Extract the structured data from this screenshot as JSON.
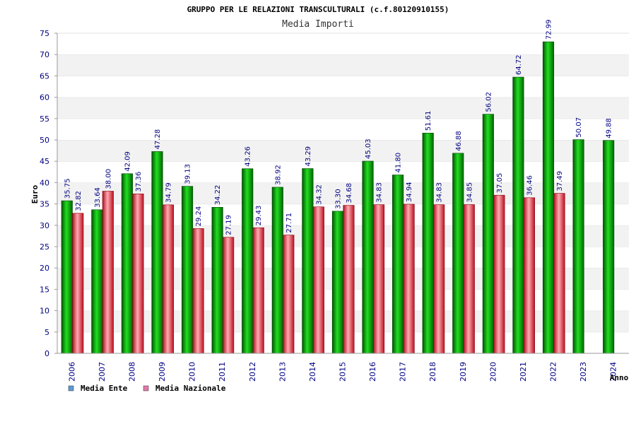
{
  "chart_data": {
    "type": "bar",
    "title": "GRUPPO PER LE RELAZIONI TRANSCULTURALI (c.f.80120910155)",
    "subtitle": "Media Importi",
    "ylabel": "Euro",
    "xlabel": "Anno",
    "ylim": [
      0,
      75
    ],
    "yticks": [
      0,
      5,
      10,
      15,
      20,
      25,
      30,
      35,
      40,
      45,
      50,
      55,
      60,
      65,
      70,
      75
    ],
    "grid": "horizontal alternating bands",
    "legend_position": "bottom-left",
    "categories": [
      "2006",
      "2007",
      "2008",
      "2009",
      "2010",
      "2011",
      "2012",
      "2013",
      "2014",
      "2015",
      "2016",
      "2017",
      "2018",
      "2019",
      "2020",
      "2021",
      "2022",
      "2023",
      "2024"
    ],
    "series": [
      {
        "name": "Media Ente",
        "color": "#00aa00",
        "legend_color": "#5b9bd5",
        "values": [
          35.75,
          33.64,
          42.09,
          47.28,
          39.13,
          34.22,
          43.26,
          38.92,
          43.29,
          33.3,
          45.03,
          41.8,
          51.61,
          46.88,
          56.02,
          64.72,
          72.99,
          50.07,
          49.88
        ],
        "labels": [
          "35.75",
          "33.64",
          "42.09",
          "47.28",
          "39.13",
          "34.22",
          "43.26",
          "38.92",
          "43.29",
          "33.30",
          "45.03",
          "41.80",
          "51.61",
          "46.88",
          "56.02",
          "64.72",
          "72.99",
          "50.07",
          "49.88"
        ]
      },
      {
        "name": "Media Nazionale",
        "color": "#dd2233",
        "legend_color": "#e377a8",
        "values": [
          32.82,
          38.0,
          37.36,
          34.79,
          29.24,
          27.19,
          29.43,
          27.71,
          34.32,
          34.68,
          34.83,
          34.94,
          34.83,
          34.85,
          37.05,
          36.46,
          37.49,
          null,
          null
        ],
        "labels": [
          "32.82",
          "38.00",
          "37.36",
          "34.79",
          "29.24",
          "27.19",
          "29.43",
          "27.71",
          "34.32",
          "34.68",
          "34.83",
          "34.94",
          "34.83",
          "34.85",
          "37.05",
          "36.46",
          "37.49",
          "",
          ""
        ]
      }
    ]
  }
}
